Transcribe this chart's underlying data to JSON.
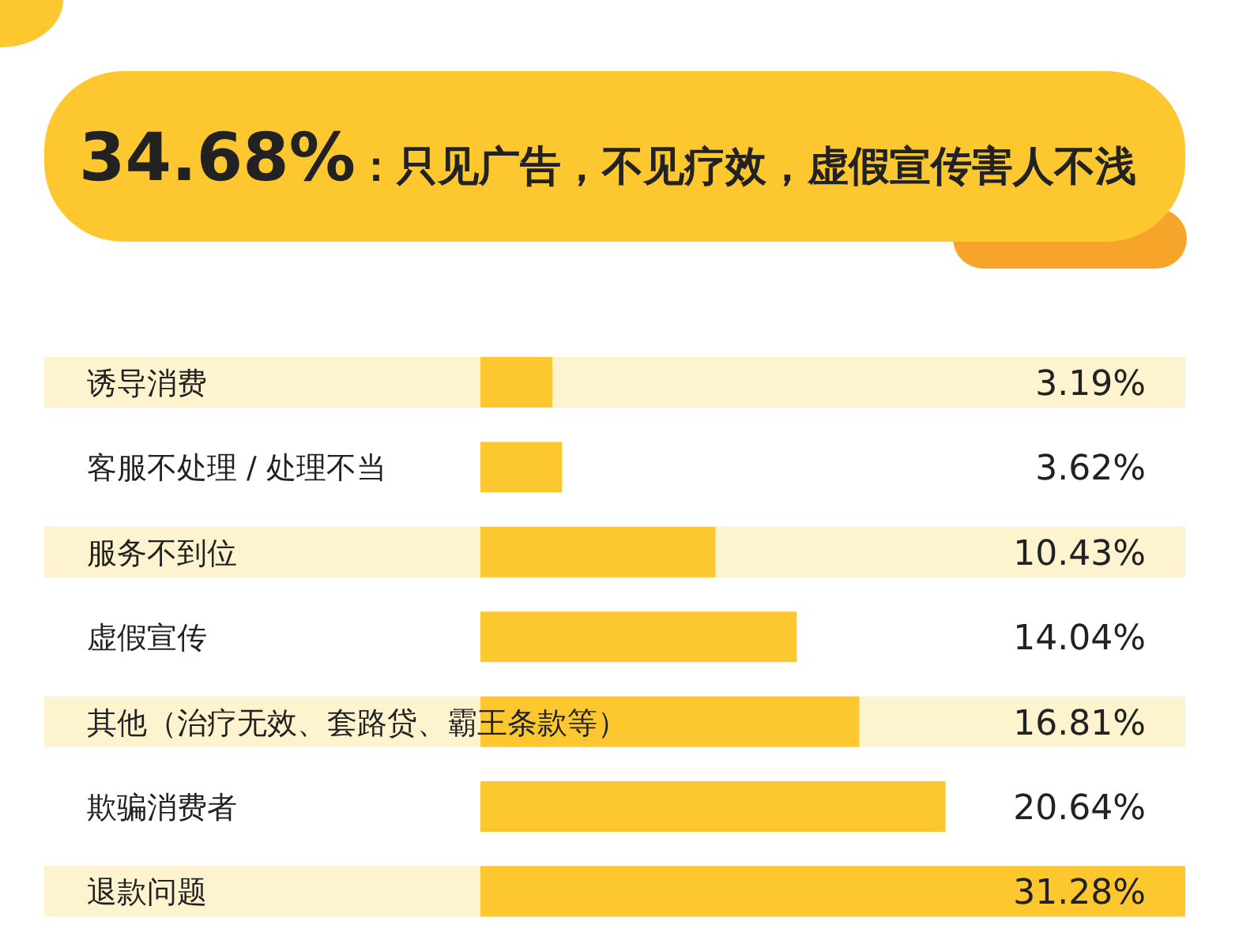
{
  "chart_data": {
    "type": "bar",
    "orientation": "horizontal",
    "title": "34.68%：只见广告，不见疗效，虚假宣传害人不浅",
    "categories": [
      "诱导消费",
      "客服不处理 / 处理不当",
      "服务不到位",
      "虚假宣传",
      "其他（治疗无效、套路贷、霸王条款等）",
      "欺骗消费者",
      "退款问题"
    ],
    "values": [
      3.19,
      3.62,
      10.43,
      14.04,
      16.81,
      20.64,
      31.28
    ],
    "value_labels": [
      "3.19%",
      "3.62%",
      "10.43%",
      "14.04%",
      "16.81%",
      "20.64%",
      "31.28%"
    ],
    "color": "#fdc82f"
  }
}
